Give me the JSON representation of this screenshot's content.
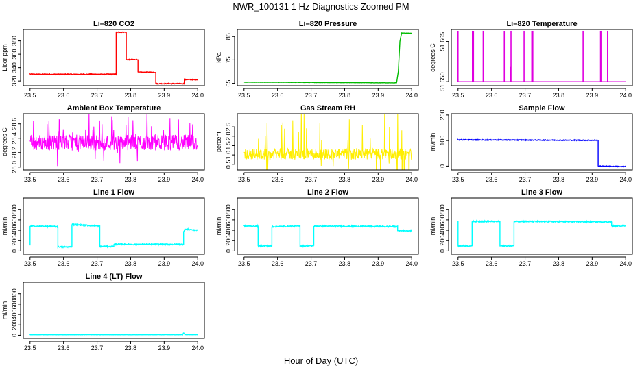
{
  "figure": {
    "title": "NWR_100131  1 Hz Diagnostics Zoomed PM",
    "xlabel": "Hour of Day (UTC)"
  },
  "chart_data": [
    {
      "type": "line",
      "title": "Li–820 CO2",
      "ylabel": "Licor ppm",
      "color": "#ff0000",
      "xlim": [
        23.48,
        24.02
      ],
      "ylim": [
        313,
        397
      ],
      "xticks": [
        "23.5",
        "23.6",
        "23.7",
        "23.8",
        "23.9",
        "24.0"
      ],
      "yticks": [
        "320",
        "340",
        "360",
        "380"
      ],
      "mode": "step",
      "noise": 0.6,
      "points": [
        [
          23.5,
          330
        ],
        [
          23.757,
          330
        ],
        [
          23.757,
          393
        ],
        [
          23.787,
          393
        ],
        [
          23.787,
          352
        ],
        [
          23.822,
          352
        ],
        [
          23.822,
          333
        ],
        [
          23.875,
          333
        ],
        [
          23.875,
          316
        ],
        [
          23.96,
          316
        ],
        [
          23.96,
          322
        ],
        [
          24.0,
          322
        ]
      ]
    },
    {
      "type": "line",
      "title": "Li–820 Pressure",
      "ylabel": "kPa",
      "color": "#00bb00",
      "xlim": [
        23.48,
        24.02
      ],
      "ylim": [
        64,
        88
      ],
      "xticks": [
        "23.5",
        "23.6",
        "23.7",
        "23.8",
        "23.9",
        "24.0"
      ],
      "yticks": [
        "65",
        "75",
        "85"
      ],
      "mode": "interp",
      "noise": 0.05,
      "points": [
        [
          23.5,
          65.5
        ],
        [
          23.955,
          65.2
        ],
        [
          23.96,
          70
        ],
        [
          23.965,
          83
        ],
        [
          23.97,
          86.5
        ],
        [
          24.0,
          86.4
        ]
      ]
    },
    {
      "type": "spikes",
      "title": "Li–820 Temperature",
      "ylabel": "degrees C",
      "color": "#e000e0",
      "xlim": [
        23.48,
        24.02
      ],
      "ylim": [
        51.6485,
        51.6695
      ],
      "xticks": [
        "23.5",
        "23.6",
        "23.7",
        "23.8",
        "23.9",
        "24.0"
      ],
      "yticks": [
        "51.650",
        "51.665"
      ],
      "baseline": 51.65,
      "spikes": [
        [
          23.5,
          51.669
        ],
        [
          23.543,
          51.669
        ],
        [
          23.546,
          51.669
        ],
        [
          23.575,
          51.669
        ],
        [
          23.638,
          51.669
        ],
        [
          23.658,
          51.669
        ],
        [
          23.656,
          51.6555
        ],
        [
          23.697,
          51.669
        ],
        [
          23.72,
          51.669
        ],
        [
          23.723,
          51.669
        ],
        [
          23.873,
          51.669
        ],
        [
          23.925,
          51.669
        ],
        [
          23.928,
          51.669
        ],
        [
          23.946,
          51.669
        ]
      ]
    },
    {
      "type": "noise",
      "title": "Ambient Box Temperature",
      "ylabel": "degrees C",
      "color": "#ff00ff",
      "xlim": [
        23.48,
        24.02
      ],
      "ylim": [
        27.96,
        28.74
      ],
      "xticks": [
        "23.5",
        "23.6",
        "23.7",
        "23.8",
        "23.9",
        "24.0"
      ],
      "yticks": [
        "28.0",
        "28.2",
        "28.4",
        "28.6"
      ],
      "center": 28.34,
      "spread": 0.11,
      "burst": 0.35
    },
    {
      "type": "noise",
      "title": "Gas Stream RH",
      "ylabel": "percent",
      "color": "#ffee00",
      "xlim": [
        23.48,
        24.02
      ],
      "ylim": [
        0.2,
        3.2
      ],
      "xticks": [
        "23.5",
        "23.6",
        "23.7",
        "23.8",
        "23.9",
        "24.0"
      ],
      "yticks": [
        "0.5",
        "1.0",
        "1.5",
        "2.0",
        "2.5"
      ],
      "center": 1.05,
      "spread": 0.3,
      "burst": 1.9
    },
    {
      "type": "line",
      "title": "Sample Flow",
      "ylabel": "ml/min",
      "color": "#0000ff",
      "xlim": [
        23.48,
        24.02
      ],
      "ylim": [
        -15,
        205
      ],
      "xticks": [
        "23.5",
        "23.6",
        "23.7",
        "23.8",
        "23.9",
        "24.0"
      ],
      "yticks": [
        "0",
        "100",
        "200"
      ],
      "mode": "step",
      "noise": 1.5,
      "points": [
        [
          23.5,
          103
        ],
        [
          23.918,
          101
        ],
        [
          23.918,
          0
        ],
        [
          24.0,
          -2
        ]
      ]
    },
    {
      "type": "line",
      "title": "Line 1 Flow",
      "ylabel": "ml/min",
      "color": "#00ffff",
      "xlim": [
        23.48,
        24.02
      ],
      "ylim": [
        -60,
        1020
      ],
      "xticks": [
        "23.5",
        "23.6",
        "23.7",
        "23.8",
        "23.9",
        "24.0"
      ],
      "yticks": [
        "0",
        "200",
        "400",
        "600",
        "800"
      ],
      "mode": "step",
      "noise": 12,
      "points": [
        [
          23.5,
          110
        ],
        [
          23.5,
          480
        ],
        [
          23.583,
          470
        ],
        [
          23.583,
          80
        ],
        [
          23.625,
          80
        ],
        [
          23.625,
          510
        ],
        [
          23.708,
          480
        ],
        [
          23.708,
          90
        ],
        [
          23.75,
          90
        ],
        [
          23.75,
          130
        ],
        [
          23.958,
          130
        ],
        [
          23.958,
          380
        ],
        [
          23.962,
          420
        ],
        [
          24.0,
          400
        ]
      ]
    },
    {
      "type": "line",
      "title": "Line 2 Flow",
      "ylabel": "ml/min",
      "color": "#00ffff",
      "xlim": [
        23.48,
        24.02
      ],
      "ylim": [
        -60,
        1020
      ],
      "xticks": [
        "23.5",
        "23.6",
        "23.7",
        "23.8",
        "23.9",
        "24.0"
      ],
      "yticks": [
        "0",
        "200",
        "400",
        "600",
        "800"
      ],
      "mode": "step",
      "noise": 12,
      "points": [
        [
          23.5,
          480
        ],
        [
          23.542,
          480
        ],
        [
          23.542,
          100
        ],
        [
          23.583,
          100
        ],
        [
          23.583,
          470
        ],
        [
          23.667,
          480
        ],
        [
          23.667,
          100
        ],
        [
          23.708,
          100
        ],
        [
          23.708,
          480
        ],
        [
          23.958,
          470
        ],
        [
          23.958,
          390
        ],
        [
          24.0,
          390
        ]
      ]
    },
    {
      "type": "line",
      "title": "Line 3 Flow",
      "ylabel": "ml/min",
      "color": "#00ffff",
      "xlim": [
        23.48,
        24.02
      ],
      "ylim": [
        -60,
        1020
      ],
      "xticks": [
        "23.5",
        "23.6",
        "23.7",
        "23.8",
        "23.9",
        "24.0"
      ],
      "yticks": [
        "0",
        "200",
        "400",
        "600",
        "800"
      ],
      "mode": "step",
      "noise": 12,
      "points": [
        [
          23.5,
          580
        ],
        [
          23.5,
          100
        ],
        [
          23.542,
          100
        ],
        [
          23.542,
          570
        ],
        [
          23.625,
          570
        ],
        [
          23.625,
          100
        ],
        [
          23.667,
          100
        ],
        [
          23.667,
          570
        ],
        [
          23.958,
          560
        ],
        [
          23.958,
          480
        ],
        [
          24.0,
          490
        ]
      ]
    },
    {
      "type": "line",
      "title": "Line 4 (LT) Flow",
      "ylabel": "ml/min",
      "color": "#00ffff",
      "xlim": [
        23.48,
        24.02
      ],
      "ylim": [
        -60,
        1020
      ],
      "xticks": [
        "23.5",
        "23.6",
        "23.7",
        "23.8",
        "23.9",
        "24.0"
      ],
      "yticks": [
        "0",
        "200",
        "400",
        "600",
        "800"
      ],
      "mode": "interp",
      "noise": 2,
      "points": [
        [
          23.5,
          10
        ],
        [
          23.955,
          10
        ],
        [
          23.958,
          50
        ],
        [
          23.962,
          12
        ],
        [
          24.0,
          10
        ]
      ]
    }
  ]
}
